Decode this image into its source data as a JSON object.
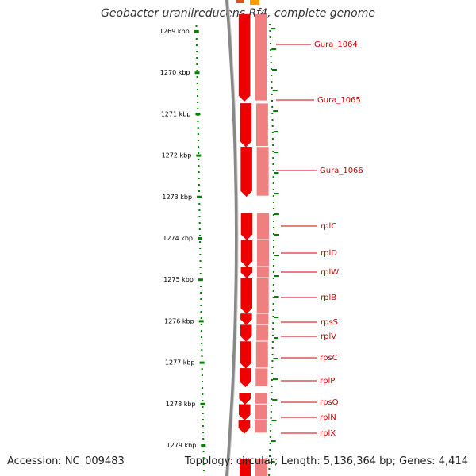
{
  "title": "Geobacter uraniireducens Rf4, complete genome",
  "footer": {
    "accession": "Accession: NC_009483",
    "summary": "Topology: circular; Length: 5,136,364 bp; Genes: 4,414"
  },
  "ruler": {
    "unit": "kbp",
    "labels": [
      "1269 kbp",
      "1270 kbp",
      "1271 kbp",
      "1272 kbp",
      "1273 kbp",
      "1274 kbp",
      "1275 kbp",
      "1276 kbp",
      "1277 kbp",
      "1278 kbp",
      "1279 kbp"
    ]
  },
  "colors": {
    "gene": "#ee0000",
    "gene_light": "#f08080",
    "label": "#cc0000",
    "tick": "#008000",
    "backbone": "#777777",
    "orange": "#ff9900"
  },
  "genes": [
    {
      "name": "Gura_1064",
      "start_kbp": 1268.6,
      "end_kbp": 1270.7,
      "strand": "-"
    },
    {
      "name": "Gura_1065",
      "start_kbp": 1270.75,
      "end_kbp": 1271.8,
      "strand": "-"
    },
    {
      "name": "Gura_1066",
      "start_kbp": 1271.8,
      "end_kbp": 1273.0,
      "strand": "-"
    },
    {
      "name": "rplC",
      "start_kbp": 1273.4,
      "end_kbp": 1274.05,
      "strand": "-"
    },
    {
      "name": "rplD",
      "start_kbp": 1274.05,
      "end_kbp": 1274.7,
      "strand": "-"
    },
    {
      "name": "rplW",
      "start_kbp": 1274.7,
      "end_kbp": 1274.97,
      "strand": "-"
    },
    {
      "name": "rplB",
      "start_kbp": 1274.97,
      "end_kbp": 1275.83,
      "strand": "-"
    },
    {
      "name": "rpsS",
      "start_kbp": 1275.83,
      "end_kbp": 1276.1,
      "strand": "-"
    },
    {
      "name": "rplV",
      "start_kbp": 1276.1,
      "end_kbp": 1276.5,
      "strand": "-"
    },
    {
      "name": "rpsC",
      "start_kbp": 1276.5,
      "end_kbp": 1277.15,
      "strand": "-"
    },
    {
      "name": "rplP",
      "start_kbp": 1277.15,
      "end_kbp": 1277.6,
      "strand": "-"
    },
    {
      "name": "rpsQ",
      "start_kbp": 1277.75,
      "end_kbp": 1278.02,
      "strand": "-"
    },
    {
      "name": "rplN",
      "start_kbp": 1278.02,
      "end_kbp": 1278.4,
      "strand": "-"
    },
    {
      "name": "rplX",
      "start_kbp": 1278.4,
      "end_kbp": 1278.72,
      "strand": "-"
    }
  ]
}
